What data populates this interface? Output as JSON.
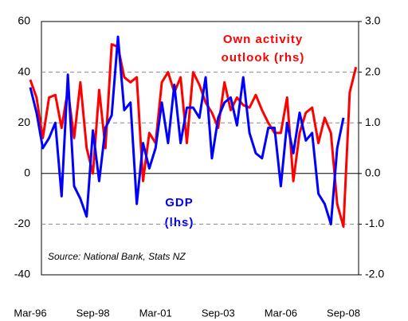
{
  "chart_data": {
    "type": "line",
    "categories": [
      "Mar-96",
      null,
      null,
      null,
      null,
      null,
      null,
      null,
      null,
      null,
      "Sep-98",
      null,
      null,
      null,
      null,
      null,
      null,
      null,
      null,
      null,
      "Mar-01",
      null,
      null,
      null,
      null,
      null,
      null,
      null,
      null,
      null,
      "Sep-03",
      null,
      null,
      null,
      null,
      null,
      null,
      null,
      null,
      null,
      "Mar-06",
      null,
      null,
      null,
      null,
      null,
      null,
      null,
      null,
      null,
      "Sep-08",
      null,
      null
    ],
    "series": [
      {
        "name": "GDP (lhs)",
        "color": "#0000ff",
        "axis": "y",
        "values": [
          34,
          24,
          10,
          14,
          20,
          -9,
          39,
          -5,
          -10,
          -17,
          17,
          -3,
          18,
          23,
          54,
          25,
          28,
          -12,
          12,
          2,
          10,
          28,
          12,
          35,
          12,
          26,
          26,
          22,
          38,
          6,
          22,
          28,
          30,
          19,
          38,
          16,
          8,
          6,
          18,
          18,
          -5,
          20,
          8,
          24,
          13,
          16,
          -8,
          -12,
          -20,
          10,
          22,
          null,
          null
        ]
      },
      {
        "name": "Own activity outlook (rhs)",
        "color": "#ff0000",
        "axis": "y2",
        "values": [
          1.85,
          1.5,
          0.7,
          1.5,
          1.55,
          0.9,
          1.65,
          0.7,
          1.8,
          0.5,
          0,
          1.65,
          0.5,
          2.55,
          2.5,
          1.9,
          1.8,
          1.9,
          -0.15,
          0.8,
          0.6,
          1.8,
          2,
          1.6,
          1.9,
          0.6,
          2,
          1.75,
          1.4,
          1.2,
          0.9,
          1.8,
          1.25,
          1.5,
          1.35,
          1.3,
          1.55,
          1.25,
          1,
          0.8,
          0.8,
          1.5,
          -0.15,
          0.8,
          1.2,
          1.3,
          0.6,
          1.1,
          0.8,
          -0.6,
          -1.05,
          1.6,
          2.1
        ]
      }
    ],
    "ylim": [
      -40,
      60
    ],
    "yticks": [
      -40,
      -20,
      0,
      20,
      40,
      60
    ],
    "y2lim": [
      -2,
      3
    ],
    "y2ticks": [
      {
        "value": -2,
        "label": "-2.0"
      },
      {
        "value": -1,
        "label": "-1.0"
      },
      {
        "value": 0,
        "label": "0.0"
      },
      {
        "value": 1,
        "label": "1.0"
      },
      {
        "value": 2,
        "label": "2.0"
      },
      {
        "value": 3,
        "label": "3.0"
      }
    ],
    "grid": true,
    "annotations": [
      "Own activity",
      "outlook (rhs)",
      "GDP",
      "(lhs)",
      "Source: National Bank, Stats NZ"
    ]
  }
}
